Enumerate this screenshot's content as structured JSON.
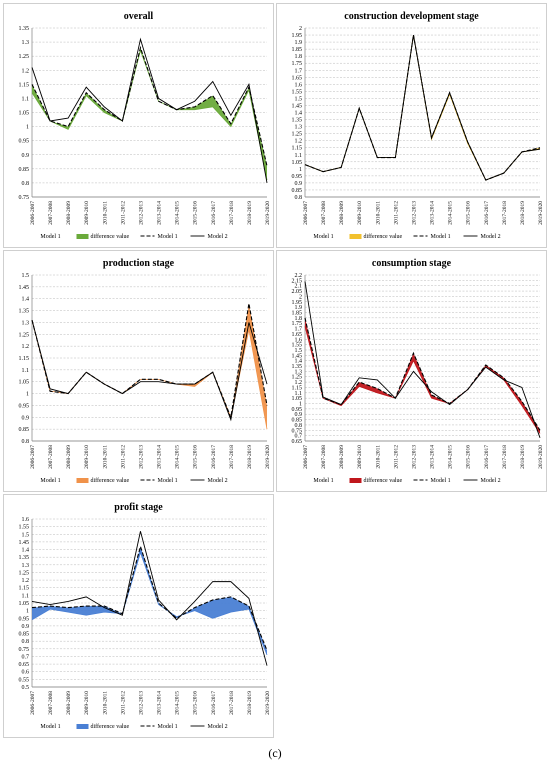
{
  "caption": "(c)",
  "chart_data": [
    {
      "type": "line",
      "title": "overall",
      "fill_color": "#6aaa3a",
      "categories": [
        "2006-2007",
        "2007-2008",
        "2008-2009",
        "2009-2010",
        "2010-2011",
        "2011-2012",
        "2012-2013",
        "2013-2014",
        "2014-2015",
        "2015-2016",
        "2016-2017",
        "2017-2018",
        "2018-2019",
        "2019-2020"
      ],
      "ylim": [
        0.75,
        1.35
      ],
      "ystep": 0.05,
      "ytick_labels": [
        "0.75",
        "0.8",
        "0.85",
        "0.9",
        "0.95",
        "1",
        "1.05",
        "1.1",
        "1.15",
        "1.2",
        "1.25",
        "1.3",
        "1.35"
      ],
      "grid": true,
      "legend": [
        "Model 1",
        "difference value",
        "Model 1",
        "Model 2"
      ],
      "series": [
        {
          "name": "Model 1",
          "style": "fill-lower",
          "values": [
            1.12,
            1.02,
            0.99,
            1.11,
            1.05,
            1.02,
            1.27,
            1.09,
            1.06,
            1.06,
            1.07,
            1.0,
            1.13,
            0.81
          ]
        },
        {
          "name": "Model 1",
          "style": "dashed",
          "values": [
            1.15,
            1.02,
            1.0,
            1.12,
            1.06,
            1.02,
            1.28,
            1.09,
            1.06,
            1.07,
            1.11,
            1.01,
            1.14,
            0.86
          ]
        },
        {
          "name": "Model 2",
          "style": "solid",
          "values": [
            1.21,
            1.02,
            1.03,
            1.14,
            1.07,
            1.02,
            1.31,
            1.1,
            1.06,
            1.09,
            1.16,
            1.04,
            1.15,
            0.8
          ]
        }
      ]
    },
    {
      "type": "line",
      "title": "construction development  stage",
      "fill_color": "#f2c12e",
      "categories": [
        "2006-2007",
        "2007-2008",
        "2008-2009",
        "2009-2010",
        "2010-2011",
        "2011-2012",
        "2012-2013",
        "2013-2014",
        "2014-2015",
        "2015-2016",
        "2016-2017",
        "2017-2018",
        "2018-2019",
        "2019-2020"
      ],
      "ylim": [
        0.8,
        2.0
      ],
      "ystep": 0.05,
      "ytick_labels": [
        "0.8",
        "0.85",
        "0.9",
        "0.95",
        "1",
        "1.05",
        "1.1",
        "1.15",
        "1.2",
        "1.25",
        "1.3",
        "1.35",
        "1.4",
        "1.45",
        "1.5",
        "1.55",
        "1.6",
        "1.65",
        "1.7",
        "1.75",
        "1.8",
        "1.85",
        "1.9",
        "1.95",
        "2"
      ],
      "grid": true,
      "legend": [
        "Model 1",
        "difference value",
        "Model 1",
        "Model 2"
      ],
      "series": [
        {
          "name": "Model 1",
          "style": "fill-lower",
          "values": [
            1.03,
            0.98,
            1.01,
            1.43,
            1.08,
            1.08,
            1.95,
            1.21,
            1.53,
            1.18,
            0.92,
            0.97,
            1.12,
            1.14
          ]
        },
        {
          "name": "Model 1",
          "style": "dashed",
          "values": [
            1.03,
            0.98,
            1.01,
            1.43,
            1.08,
            1.08,
            1.95,
            1.22,
            1.54,
            1.19,
            0.92,
            0.97,
            1.12,
            1.15
          ]
        },
        {
          "name": "Model 2",
          "style": "solid",
          "values": [
            1.03,
            0.98,
            1.01,
            1.43,
            1.08,
            1.08,
            1.95,
            1.22,
            1.54,
            1.19,
            0.92,
            0.97,
            1.12,
            1.14
          ]
        }
      ]
    },
    {
      "type": "line",
      "title": "production  stage",
      "fill_color": "#f0924a",
      "categories": [
        "2006-2007",
        "2007-2008",
        "2008-2009",
        "2009-2010",
        "2010-2011",
        "2011-2012",
        "2012-2013",
        "2013-2014",
        "2014-2015",
        "2015-2016",
        "2016-2017",
        "2017-2018",
        "2018-2019",
        "2019-2020"
      ],
      "ylim": [
        0.8,
        1.5
      ],
      "ystep": 0.05,
      "ytick_labels": [
        "0.8",
        "0.85",
        "0.9",
        "0.95",
        "1",
        "1.05",
        "1.1",
        "1.15",
        "1.2",
        "1.25",
        "1.3",
        "1.35",
        "1.4",
        "1.45",
        "1.5"
      ],
      "grid": true,
      "legend": [
        "Model 1",
        "difference value",
        "Model 1",
        "Model 2"
      ],
      "series": [
        {
          "name": "Model 1",
          "style": "fill-lower",
          "values": [
            1.31,
            1.01,
            1.0,
            1.09,
            1.04,
            1.0,
            1.06,
            1.06,
            1.04,
            1.03,
            1.09,
            0.9,
            1.27,
            0.85
          ]
        },
        {
          "name": "Model 1",
          "style": "dashed",
          "values": [
            1.31,
            1.01,
            1.0,
            1.09,
            1.04,
            1.0,
            1.06,
            1.06,
            1.04,
            1.04,
            1.09,
            0.9,
            1.38,
            0.95
          ]
        },
        {
          "name": "Model 2",
          "style": "solid",
          "values": [
            1.31,
            1.02,
            1.0,
            1.09,
            1.04,
            1.0,
            1.05,
            1.05,
            1.04,
            1.04,
            1.09,
            0.89,
            1.3,
            1.04
          ]
        }
      ]
    },
    {
      "type": "line",
      "title": "consumption  stage",
      "fill_color": "#c0171c",
      "categories": [
        "2006-2007",
        "2007-2008",
        "2008-2009",
        "2009-2010",
        "2010-2011",
        "2011-2012",
        "2012-2013",
        "2013-2014",
        "2014-2015",
        "2015-2016",
        "2016-2017",
        "2017-2018",
        "2018-2019",
        "2019-2020"
      ],
      "ylim": [
        0.65,
        2.2
      ],
      "ystep": 0.05,
      "ytick_labels": [
        "0.65",
        "0.7",
        "0.75",
        "0.8",
        "0.85",
        "0.9",
        "0.95",
        "1",
        "1.05",
        "1.1",
        "1.15",
        "1.2",
        "1.25",
        "1.3",
        "1.35",
        "1.4",
        "1.45",
        "1.5",
        "1.55",
        "1.6",
        "1.65",
        "1.7",
        "1.75",
        "1.8",
        "1.85",
        "1.9",
        "1.95",
        "2",
        "2.05",
        "2.1",
        "2.15",
        "2.2"
      ],
      "grid": true,
      "legend": [
        "Model 1",
        "difference value",
        "Model 1",
        "Model 2"
      ],
      "series": [
        {
          "name": "Model 1",
          "style": "fill-lower",
          "values": [
            1.72,
            1.05,
            0.98,
            1.16,
            1.1,
            1.05,
            1.4,
            1.05,
            1.0,
            1.13,
            1.35,
            1.22,
            0.98,
            0.72
          ]
        },
        {
          "name": "Model 1",
          "style": "dashed",
          "values": [
            1.8,
            1.05,
            0.99,
            1.2,
            1.14,
            1.05,
            1.47,
            1.08,
            1.0,
            1.13,
            1.36,
            1.24,
            1.02,
            0.75
          ]
        },
        {
          "name": "Model 2",
          "style": "solid",
          "values": [
            2.14,
            1.06,
            0.99,
            1.24,
            1.22,
            1.05,
            1.3,
            1.11,
            0.99,
            1.13,
            1.34,
            1.22,
            1.15,
            0.68
          ]
        }
      ]
    },
    {
      "type": "line",
      "title": "profit  stage",
      "fill_color": "#4a7fd4",
      "categories": [
        "2006-2007",
        "2007-2008",
        "2008-2009",
        "2009-2010",
        "2010-2011",
        "2011-2012",
        "2012-2013",
        "2013-2014",
        "2014-2015",
        "2015-2016",
        "2016-2017",
        "2017-2018",
        "2018-2019",
        "2019-2020"
      ],
      "ylim": [
        0.5,
        1.6
      ],
      "ystep": 0.05,
      "ytick_labels": [
        "0.5",
        "0.55",
        "0.6",
        "0.65",
        "0.7",
        "0.75",
        "0.8",
        "0.85",
        "0.9",
        "0.95",
        "1",
        "1.05",
        "1.1",
        "1.15",
        "1.2",
        "1.25",
        "1.3",
        "1.35",
        "1.4",
        "1.45",
        "1.5",
        "1.55",
        "1.6"
      ],
      "grid": true,
      "legend": [
        "Model 1",
        "difference value",
        "Model 1",
        "Model 2"
      ],
      "series": [
        {
          "name": "Model 1",
          "style": "fill-lower",
          "values": [
            0.94,
            1.01,
            0.99,
            0.97,
            0.99,
            0.98,
            1.38,
            1.04,
            0.96,
            1.0,
            0.95,
            0.99,
            1.01,
            0.71
          ]
        },
        {
          "name": "Model 1",
          "style": "dashed",
          "values": [
            1.02,
            1.03,
            1.02,
            1.03,
            1.03,
            0.98,
            1.42,
            1.05,
            0.95,
            1.02,
            1.07,
            1.09,
            1.03,
            0.74
          ]
        },
        {
          "name": "Model 2",
          "style": "solid",
          "values": [
            1.06,
            1.04,
            1.06,
            1.09,
            1.02,
            0.97,
            1.52,
            1.07,
            0.94,
            1.06,
            1.19,
            1.19,
            1.08,
            0.64
          ]
        }
      ]
    }
  ]
}
